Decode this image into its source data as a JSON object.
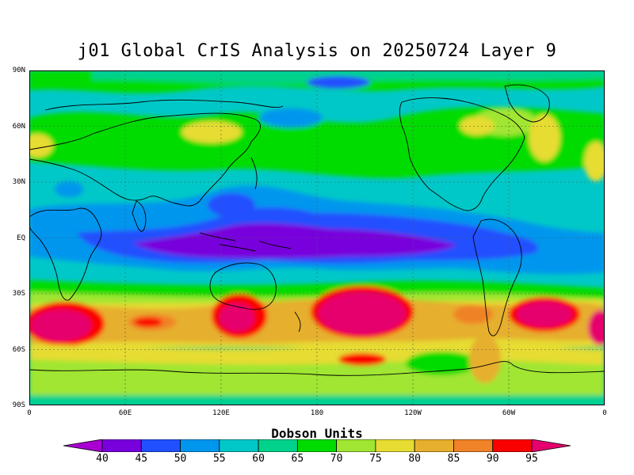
{
  "title": "j01 Global CrIS Analysis on 20250724 Layer 9",
  "lat_labels": [
    "90N",
    "60N",
    "30N",
    "EQ",
    "30S",
    "60S",
    "90S"
  ],
  "lon_labels": [
    "0",
    "60E",
    "120E",
    "180",
    "120W",
    "60W",
    "0"
  ],
  "colorbar": {
    "title": "Dobson Units",
    "levels": [
      "40",
      "45",
      "50",
      "55",
      "60",
      "65",
      "70",
      "75",
      "80",
      "85",
      "90",
      "95"
    ],
    "colors": [
      "#a800d2",
      "#7800dc",
      "#2050ff",
      "#0096ee",
      "#00c8c8",
      "#00d28c",
      "#00dc00",
      "#a0e632",
      "#e6dc32",
      "#e6af2d",
      "#f08228",
      "#fa0000",
      "#e6006e"
    ]
  },
  "background_color": "#00c8c8"
}
